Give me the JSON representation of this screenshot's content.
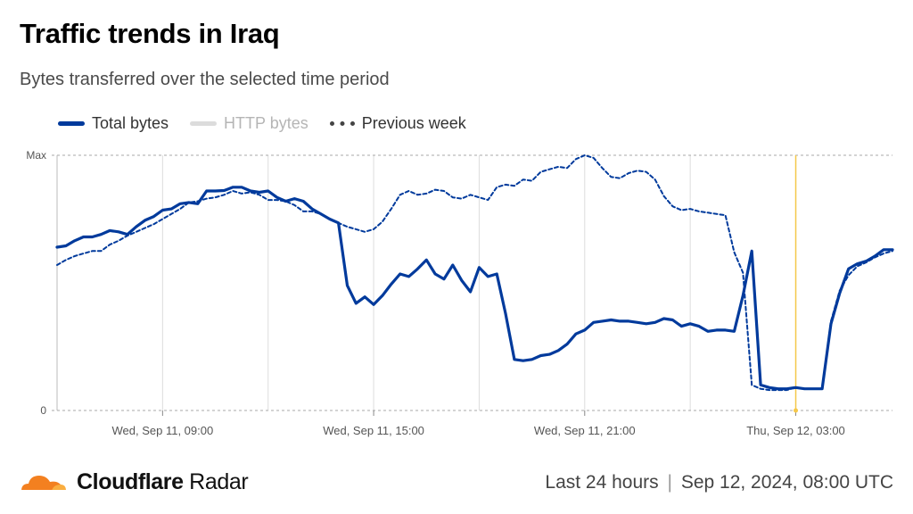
{
  "title": "Traffic trends in Iraq",
  "subtitle": "Bytes transferred over the selected time period",
  "legend": {
    "total": "Total bytes",
    "http": "HTTP bytes",
    "previous": "Previous week"
  },
  "brand": {
    "name": "Cloudflare",
    "product": "Radar"
  },
  "footer": {
    "range": "Last 24 hours",
    "separator": "|",
    "timestamp": "Sep 12, 2024, 08:00 UTC"
  },
  "colors": {
    "total": "#003a9c",
    "previous": "#003a9c",
    "http": "#dcdcdc",
    "marker": "#f5c84a",
    "grid": "#dddddd",
    "logo_orange": "#f38020",
    "logo_light": "#faae40"
  },
  "chart_data": {
    "type": "line",
    "y_unit": "fraction of max",
    "ylim": [
      0,
      1
    ],
    "y_ticks": [
      {
        "value": 1,
        "label": "Max"
      },
      {
        "value": 0,
        "label": "0"
      }
    ],
    "x_ticks": [
      {
        "hour": 1,
        "label": "Wed, Sep 11, 09:00"
      },
      {
        "hour": 7,
        "label": "Wed, Sep 11, 15:00"
      },
      {
        "hour": 13,
        "label": "Wed, Sep 11, 21:00"
      },
      {
        "hour": 19,
        "label": "Thu, Sep 12, 03:00"
      }
    ],
    "x_range_hours": [
      -2.0,
      21.75
    ],
    "marker_hour": 19,
    "series": [
      {
        "name": "Total bytes",
        "style": "solid",
        "x": [
          -2.0,
          -1.75,
          -1.5,
          -1.25,
          -1.0,
          -0.75,
          -0.5,
          -0.25,
          0.0,
          0.25,
          0.5,
          0.75,
          1.0,
          1.25,
          1.5,
          1.75,
          2.0,
          2.25,
          2.5,
          2.75,
          3.0,
          3.25,
          3.5,
          3.75,
          4.0,
          4.25,
          4.5,
          4.75,
          5.0,
          5.25,
          5.5,
          5.75,
          6.0,
          6.25,
          6.5,
          6.75,
          7.0,
          7.25,
          7.5,
          7.75,
          8.0,
          8.25,
          8.5,
          8.75,
          9.0,
          9.25,
          9.5,
          9.75,
          10.0,
          10.25,
          10.5,
          10.75,
          11.0,
          11.25,
          11.5,
          11.75,
          12.0,
          12.25,
          12.5,
          12.75,
          13.0,
          13.25,
          13.5,
          13.75,
          14.0,
          14.25,
          14.5,
          14.75,
          15.0,
          15.25,
          15.5,
          15.75,
          16.0,
          16.25,
          16.5,
          16.75,
          17.0,
          17.25,
          17.5,
          17.75,
          18.0,
          18.25,
          18.5,
          18.75,
          19.0,
          19.25,
          19.5,
          19.75,
          20.0,
          20.25,
          20.5,
          20.75,
          21.0,
          21.25,
          21.5,
          21.75
        ],
        "values": [
          0.64,
          0.645,
          0.665,
          0.68,
          0.68,
          0.69,
          0.705,
          0.7,
          0.69,
          0.72,
          0.745,
          0.76,
          0.785,
          0.79,
          0.81,
          0.815,
          0.81,
          0.86,
          0.86,
          0.862,
          0.875,
          0.875,
          0.86,
          0.855,
          0.86,
          0.835,
          0.82,
          0.83,
          0.82,
          0.79,
          0.77,
          0.75,
          0.735,
          0.49,
          0.42,
          0.445,
          0.415,
          0.45,
          0.495,
          0.535,
          0.525,
          0.555,
          0.59,
          0.535,
          0.515,
          0.57,
          0.51,
          0.465,
          0.56,
          0.525,
          0.535,
          0.38,
          0.2,
          0.195,
          0.2,
          0.215,
          0.22,
          0.235,
          0.26,
          0.3,
          0.315,
          0.345,
          0.35,
          0.355,
          0.35,
          0.35,
          0.345,
          0.34,
          0.345,
          0.36,
          0.355,
          0.33,
          0.34,
          0.33,
          0.31,
          0.315,
          0.315,
          0.31,
          0.45,
          0.625,
          0.1,
          0.09,
          0.085,
          0.085,
          0.09,
          0.085,
          0.085,
          0.085,
          0.34,
          0.46,
          0.555,
          0.575,
          0.585,
          0.605,
          0.63,
          0.63
        ]
      },
      {
        "name": "Previous week",
        "style": "dashed",
        "x": [
          -2.0,
          -1.75,
          -1.5,
          -1.25,
          -1.0,
          -0.75,
          -0.5,
          -0.25,
          0.0,
          0.25,
          0.5,
          0.75,
          1.0,
          1.25,
          1.5,
          1.75,
          2.0,
          2.25,
          2.5,
          2.75,
          3.0,
          3.25,
          3.5,
          3.75,
          4.0,
          4.25,
          4.5,
          4.75,
          5.0,
          5.25,
          5.5,
          5.75,
          6.0,
          6.25,
          6.5,
          6.75,
          7.0,
          7.25,
          7.5,
          7.75,
          8.0,
          8.25,
          8.5,
          8.75,
          9.0,
          9.25,
          9.5,
          9.75,
          10.0,
          10.25,
          10.5,
          10.75,
          11.0,
          11.25,
          11.5,
          11.75,
          12.0,
          12.25,
          12.5,
          12.75,
          13.0,
          13.25,
          13.5,
          13.75,
          14.0,
          14.25,
          14.5,
          14.75,
          15.0,
          15.25,
          15.5,
          15.75,
          16.0,
          16.25,
          16.5,
          16.75,
          17.0,
          17.25,
          17.5,
          17.75,
          18.0,
          18.25,
          18.5,
          18.75,
          19.0,
          19.25,
          19.5,
          19.75,
          20.0,
          20.25,
          20.5,
          20.75,
          21.0,
          21.25,
          21.5,
          21.75
        ],
        "values": [
          0.57,
          0.59,
          0.605,
          0.615,
          0.625,
          0.625,
          0.65,
          0.665,
          0.685,
          0.7,
          0.715,
          0.73,
          0.75,
          0.77,
          0.79,
          0.815,
          0.82,
          0.83,
          0.835,
          0.845,
          0.86,
          0.85,
          0.855,
          0.845,
          0.825,
          0.825,
          0.82,
          0.805,
          0.78,
          0.78,
          0.77,
          0.75,
          0.735,
          0.72,
          0.71,
          0.7,
          0.71,
          0.74,
          0.79,
          0.845,
          0.86,
          0.845,
          0.85,
          0.865,
          0.86,
          0.835,
          0.83,
          0.845,
          0.835,
          0.825,
          0.875,
          0.885,
          0.88,
          0.905,
          0.9,
          0.935,
          0.945,
          0.955,
          0.95,
          0.985,
          1.0,
          0.99,
          0.95,
          0.915,
          0.91,
          0.93,
          0.94,
          0.935,
          0.905,
          0.84,
          0.8,
          0.785,
          0.79,
          0.78,
          0.775,
          0.77,
          0.765,
          0.62,
          0.54,
          0.1,
          0.085,
          0.08,
          0.08,
          0.08,
          0.09,
          0.085,
          0.085,
          0.085,
          0.35,
          0.47,
          0.53,
          0.565,
          0.58,
          0.6,
          0.615,
          0.625
        ]
      }
    ]
  }
}
